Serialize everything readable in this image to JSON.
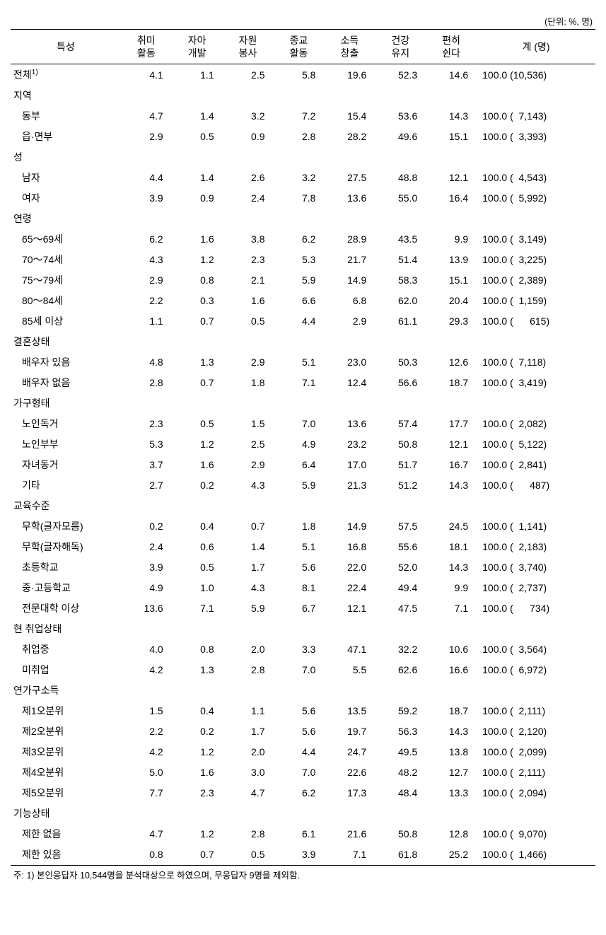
{
  "unit_label": "(단위: %, 명)",
  "headers": {
    "characteristic": "특성",
    "hobby": "취미\n활동",
    "self_dev": "자아\n개발",
    "volunteer": "자원\n봉사",
    "religion": "종교\n활동",
    "income": "소득\n창출",
    "health": "건강\n유지",
    "rest": "편히\n쉰다",
    "total": "계 (명)"
  },
  "rows": [
    {
      "type": "data",
      "indent": false,
      "label_html": "전체<sup>1)</sup>",
      "vals": [
        "4.1",
        "1.1",
        "2.5",
        "5.8",
        "19.6",
        "52.3",
        "14.6"
      ],
      "pct": "100.0",
      "count": "10,536"
    },
    {
      "type": "section",
      "label": "지역"
    },
    {
      "type": "data",
      "indent": true,
      "label": "동부",
      "vals": [
        "4.7",
        "1.4",
        "3.2",
        "7.2",
        "15.4",
        "53.6",
        "14.3"
      ],
      "pct": "100.0",
      "count": "7,143"
    },
    {
      "type": "data",
      "indent": true,
      "label": "읍·면부",
      "vals": [
        "2.9",
        "0.5",
        "0.9",
        "2.8",
        "28.2",
        "49.6",
        "15.1"
      ],
      "pct": "100.0",
      "count": "3,393"
    },
    {
      "type": "section",
      "label": "성"
    },
    {
      "type": "data",
      "indent": true,
      "label": "남자",
      "vals": [
        "4.4",
        "1.4",
        "2.6",
        "3.2",
        "27.5",
        "48.8",
        "12.1"
      ],
      "pct": "100.0",
      "count": "4,543"
    },
    {
      "type": "data",
      "indent": true,
      "label": "여자",
      "vals": [
        "3.9",
        "0.9",
        "2.4",
        "7.8",
        "13.6",
        "55.0",
        "16.4"
      ],
      "pct": "100.0",
      "count": "5,992"
    },
    {
      "type": "section",
      "label": "연령"
    },
    {
      "type": "data",
      "indent": true,
      "label": "65～69세",
      "vals": [
        "6.2",
        "1.6",
        "3.8",
        "6.2",
        "28.9",
        "43.5",
        "9.9"
      ],
      "pct": "100.0",
      "count": "3,149"
    },
    {
      "type": "data",
      "indent": true,
      "label": "70～74세",
      "vals": [
        "4.3",
        "1.2",
        "2.3",
        "5.3",
        "21.7",
        "51.4",
        "13.9"
      ],
      "pct": "100.0",
      "count": "3,225"
    },
    {
      "type": "data",
      "indent": true,
      "label": "75～79세",
      "vals": [
        "2.9",
        "0.8",
        "2.1",
        "5.9",
        "14.9",
        "58.3",
        "15.1"
      ],
      "pct": "100.0",
      "count": "2,389"
    },
    {
      "type": "data",
      "indent": true,
      "label": "80～84세",
      "vals": [
        "2.2",
        "0.3",
        "1.6",
        "6.6",
        "6.8",
        "62.0",
        "20.4"
      ],
      "pct": "100.0",
      "count": "1,159"
    },
    {
      "type": "data",
      "indent": true,
      "label": "85세 이상",
      "vals": [
        "1.1",
        "0.7",
        "0.5",
        "4.4",
        "2.9",
        "61.1",
        "29.3"
      ],
      "pct": "100.0",
      "count": "615"
    },
    {
      "type": "section",
      "label": "결혼상태"
    },
    {
      "type": "data",
      "indent": true,
      "label": "배우자 있음",
      "vals": [
        "4.8",
        "1.3",
        "2.9",
        "5.1",
        "23.0",
        "50.3",
        "12.6"
      ],
      "pct": "100.0",
      "count": "7,118"
    },
    {
      "type": "data",
      "indent": true,
      "label": "배우자 없음",
      "vals": [
        "2.8",
        "0.7",
        "1.8",
        "7.1",
        "12.4",
        "56.6",
        "18.7"
      ],
      "pct": "100.0",
      "count": "3,419"
    },
    {
      "type": "section",
      "label": "가구형태"
    },
    {
      "type": "data",
      "indent": true,
      "label": "노인독거",
      "vals": [
        "2.3",
        "0.5",
        "1.5",
        "7.0",
        "13.6",
        "57.4",
        "17.7"
      ],
      "pct": "100.0",
      "count": "2,082"
    },
    {
      "type": "data",
      "indent": true,
      "label": "노인부부",
      "vals": [
        "5.3",
        "1.2",
        "2.5",
        "4.9",
        "23.2",
        "50.8",
        "12.1"
      ],
      "pct": "100.0",
      "count": "5,122"
    },
    {
      "type": "data",
      "indent": true,
      "label": "자녀동거",
      "vals": [
        "3.7",
        "1.6",
        "2.9",
        "6.4",
        "17.0",
        "51.7",
        "16.7"
      ],
      "pct": "100.0",
      "count": "2,841"
    },
    {
      "type": "data",
      "indent": true,
      "label": "기타",
      "vals": [
        "2.7",
        "0.2",
        "4.3",
        "5.9",
        "21.3",
        "51.2",
        "14.3"
      ],
      "pct": "100.0",
      "count": "487"
    },
    {
      "type": "section",
      "label": "교육수준"
    },
    {
      "type": "data",
      "indent": true,
      "label": "무학(글자모름)",
      "vals": [
        "0.2",
        "0.4",
        "0.7",
        "1.8",
        "14.9",
        "57.5",
        "24.5"
      ],
      "pct": "100.0",
      "count": "1,141"
    },
    {
      "type": "data",
      "indent": true,
      "label": "무학(글자해독)",
      "vals": [
        "2.4",
        "0.6",
        "1.4",
        "5.1",
        "16.8",
        "55.6",
        "18.1"
      ],
      "pct": "100.0",
      "count": "2,183"
    },
    {
      "type": "data",
      "indent": true,
      "label": "초등학교",
      "vals": [
        "3.9",
        "0.5",
        "1.7",
        "5.6",
        "22.0",
        "52.0",
        "14.3"
      ],
      "pct": "100.0",
      "count": "3,740"
    },
    {
      "type": "data",
      "indent": true,
      "label": "중·고등학교",
      "vals": [
        "4.9",
        "1.0",
        "4.3",
        "8.1",
        "22.4",
        "49.4",
        "9.9"
      ],
      "pct": "100.0",
      "count": "2,737"
    },
    {
      "type": "data",
      "indent": true,
      "label": "전문대학 이상",
      "vals": [
        "13.6",
        "7.1",
        "5.9",
        "6.7",
        "12.1",
        "47.5",
        "7.1"
      ],
      "pct": "100.0",
      "count": "734"
    },
    {
      "type": "section",
      "label": "현 취업상태"
    },
    {
      "type": "data",
      "indent": true,
      "label": "취업중",
      "vals": [
        "4.0",
        "0.8",
        "2.0",
        "3.3",
        "47.1",
        "32.2",
        "10.6"
      ],
      "pct": "100.0",
      "count": "3,564"
    },
    {
      "type": "data",
      "indent": true,
      "label": "미취업",
      "vals": [
        "4.2",
        "1.3",
        "2.8",
        "7.0",
        "5.5",
        "62.6",
        "16.6"
      ],
      "pct": "100.0",
      "count": "6,972"
    },
    {
      "type": "section",
      "label": "연가구소득"
    },
    {
      "type": "data",
      "indent": true,
      "label": "제1오분위",
      "vals": [
        "1.5",
        "0.4",
        "1.1",
        "5.6",
        "13.5",
        "59.2",
        "18.7"
      ],
      "pct": "100.0",
      "count": "2,111"
    },
    {
      "type": "data",
      "indent": true,
      "label": "제2오분위",
      "vals": [
        "2.2",
        "0.2",
        "1.7",
        "5.6",
        "19.7",
        "56.3",
        "14.3"
      ],
      "pct": "100.0",
      "count": "2,120"
    },
    {
      "type": "data",
      "indent": true,
      "label": "제3오분위",
      "vals": [
        "4.2",
        "1.2",
        "2.0",
        "4.4",
        "24.7",
        "49.5",
        "13.8"
      ],
      "pct": "100.0",
      "count": "2,099"
    },
    {
      "type": "data",
      "indent": true,
      "label": "제4오분위",
      "vals": [
        "5.0",
        "1.6",
        "3.0",
        "7.0",
        "22.6",
        "48.2",
        "12.7"
      ],
      "pct": "100.0",
      "count": "2,111"
    },
    {
      "type": "data",
      "indent": true,
      "label": "제5오분위",
      "vals": [
        "7.7",
        "2.3",
        "4.7",
        "6.2",
        "17.3",
        "48.4",
        "13.3"
      ],
      "pct": "100.0",
      "count": "2,094"
    },
    {
      "type": "section",
      "label": "기능상태"
    },
    {
      "type": "data",
      "indent": true,
      "label": "제한 없음",
      "vals": [
        "4.7",
        "1.2",
        "2.8",
        "6.1",
        "21.6",
        "50.8",
        "12.8"
      ],
      "pct": "100.0",
      "count": "9,070"
    },
    {
      "type": "data",
      "indent": true,
      "label": "제한 있음",
      "vals": [
        "0.8",
        "0.7",
        "0.5",
        "3.9",
        "7.1",
        "61.8",
        "25.2"
      ],
      "pct": "100.0",
      "count": "1,466"
    }
  ],
  "footnote": "주: 1) 본인응답자 10,544명을 분석대상으로 하였으며, 무응답자 9명을 제외함.",
  "styling": {
    "text_color": "#000000",
    "background_color": "#ffffff",
    "border_color": "#000000",
    "header_border_top_width": 1.5,
    "header_border_bottom_width": 1,
    "body_font_size": 14,
    "header_font_size": 14,
    "unit_font_size": 12.5,
    "footnote_font_size": 12.5,
    "total_count_width_chars": 6
  }
}
